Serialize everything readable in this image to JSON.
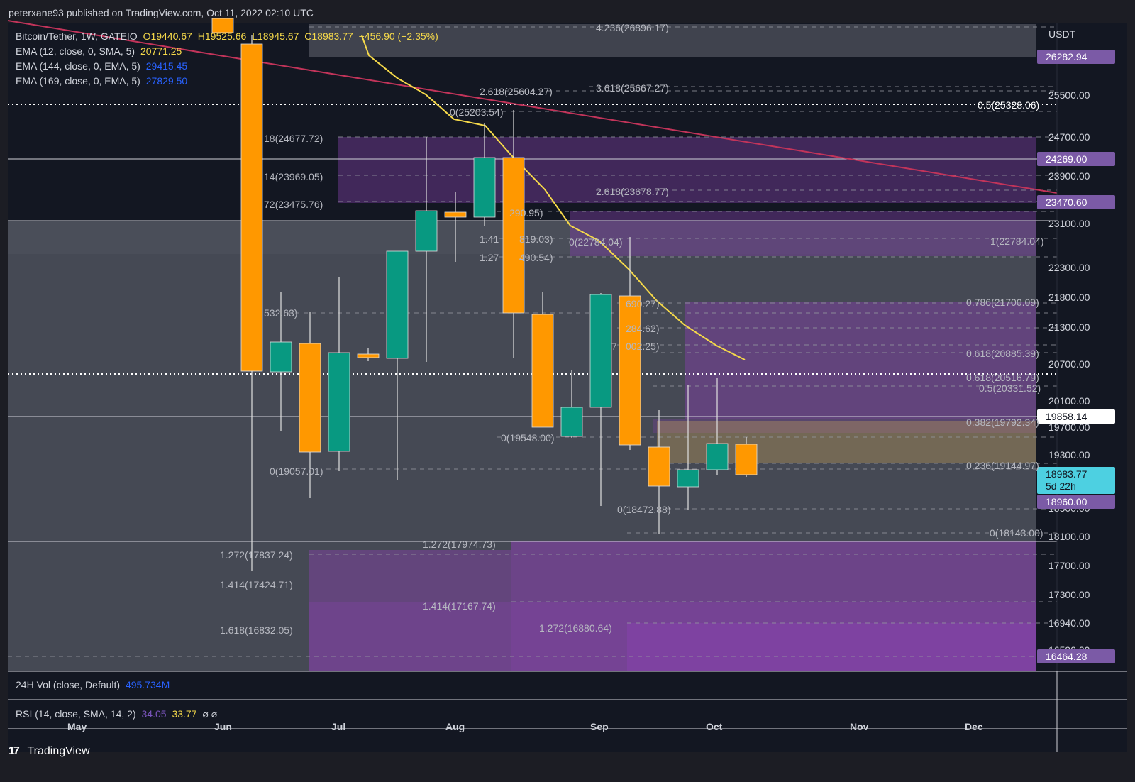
{
  "header": {
    "publisher_line": "peterxane93 published on TradingView.com, Oct 11, 2022 02:10 UTC"
  },
  "legend": {
    "symbol": "Bitcoin/Tether, 1W, GATEIO",
    "open": "O19440.67",
    "high": "H19525.66",
    "low": "L18945.67",
    "close": "C18983.77",
    "change": "−456.90 (−2.35%)",
    "ema12_label": "EMA (12, close, 0, SMA, 5)",
    "ema12_value": "20771.25",
    "ema144_label": "EMA (144, close, 0, EMA, 5)",
    "ema144_value": "29415.45",
    "ema169_label": "EMA (169, close, 0, EMA, 5)",
    "ema169_value": "27829.50"
  },
  "price_axis": {
    "currency": "USDT",
    "ticks": [
      "25500.00",
      "24700.00",
      "23900.00",
      "23100.00",
      "22300.00",
      "21800.00",
      "21300.00",
      "20700.00",
      "20100.00",
      "19700.00",
      "19300.00",
      "18500.00",
      "18100.00",
      "17700.00",
      "17300.00",
      "16940.00",
      "16590.00"
    ],
    "badges": {
      "b1": "26282.94",
      "b2": "24269.00",
      "b3": "23470.60",
      "b4": "19858.14",
      "current_price": "18983.77",
      "countdown": "5d 22h",
      "b5": "18960.00",
      "b6": "16464.28"
    }
  },
  "fib_labels": [
    "4.236(26896.17)",
    "3.618(25667.27)",
    "2.618(25604.27)",
    "0.5(25328.06)",
    "0(25203.54)",
    "18(24677.72)",
    "14(23969.05)",
    "72(23475.76)",
    "2.618(23678.77)",
    "290.95)",
    "1.41",
    "819.03)",
    "1.27",
    "490.54)",
    "0(22784.04)",
    "1(22784.04)",
    "532.63)",
    "690.27)",
    "0.786(21700.09)",
    "284.62)",
    "7",
    "002.25)",
    "0.618(20885.39)",
    "0.618(20516.79)",
    "0.5(20331.52)",
    "0.382(19792.34)",
    "0(19548.00)",
    "0.236(19144.97)",
    "0(19057.01)",
    "0(18472.88)",
    "0(18143.00)",
    "1.272(17974.73)",
    "1.272(17837.24)",
    "1.414(17424.71)",
    "1.414(17167.74)",
    "1.272(16880.64)",
    "1.618(16832.05)"
  ],
  "time_axis": [
    "May",
    "Jun",
    "Jul",
    "Aug",
    "Sep",
    "Oct",
    "Nov",
    "Dec"
  ],
  "volume_pane": {
    "title": "24H Vol (close, Default)",
    "value": "495.734M"
  },
  "rsi_pane": {
    "title": "RSI (14, close, SMA, 14, 2)",
    "value1": "34.05",
    "value2": "33.77",
    "icons": "⌀  ⌀"
  },
  "footer": {
    "brand": "TradingView"
  },
  "colors": {
    "up": "#089981",
    "down": "#ff9800",
    "ema12": "#f5d94a",
    "ema144": "#c2345a",
    "zone_purple": "#7b3fa0",
    "zone_grey": "#787b86",
    "badge_purple": "#7b5aa6",
    "badge_cyan": "#4dd0e1",
    "background": "#131722"
  }
}
